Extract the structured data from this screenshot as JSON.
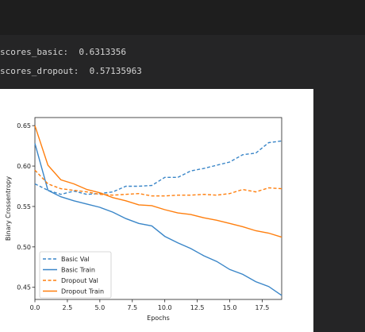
{
  "output": {
    "line1": "scores_basic:  0.6313356",
    "line2": "scores_dropout:  0.57135963"
  },
  "colors": {
    "basic": "#3a86c8",
    "dropout": "#ff7f0e",
    "background": "#252526",
    "plot_bg": "#ffffff"
  },
  "chart_data": {
    "type": "line",
    "title": "",
    "xlabel": "Epochs",
    "ylabel": "Binary Crossentropy",
    "xlim": [
      0,
      19
    ],
    "ylim": [
      0.435,
      0.66
    ],
    "xticks": [
      "0.0",
      "2.5",
      "5.0",
      "7.5",
      "10.0",
      "12.5",
      "15.0",
      "17.5"
    ],
    "xtick_values": [
      0,
      2.5,
      5,
      7.5,
      10,
      12.5,
      15,
      17.5
    ],
    "yticks": [
      "0.45",
      "0.50",
      "0.55",
      "0.60",
      "0.65"
    ],
    "ytick_values": [
      0.45,
      0.5,
      0.55,
      0.6,
      0.65
    ],
    "grid": false,
    "legend_position": "lower-left",
    "x": [
      0,
      1,
      2,
      3,
      4,
      5,
      6,
      7,
      8,
      9,
      10,
      11,
      12,
      13,
      14,
      15,
      16,
      17,
      18,
      19
    ],
    "series": [
      {
        "name": "Basic Val",
        "style": "dashed",
        "color": "#3a86c8",
        "values": [
          0.578,
          0.57,
          0.565,
          0.569,
          0.565,
          0.566,
          0.568,
          0.575,
          0.575,
          0.576,
          0.586,
          0.586,
          0.594,
          0.597,
          0.601,
          0.605,
          0.614,
          0.616,
          0.629,
          0.631
        ]
      },
      {
        "name": "Basic Train",
        "style": "solid",
        "color": "#3a86c8",
        "values": [
          0.628,
          0.57,
          0.562,
          0.557,
          0.553,
          0.549,
          0.543,
          0.535,
          0.529,
          0.526,
          0.513,
          0.505,
          0.498,
          0.489,
          0.482,
          0.472,
          0.466,
          0.457,
          0.451,
          0.44
        ]
      },
      {
        "name": "Dropout Val",
        "style": "dashed",
        "color": "#ff7f0e",
        "values": [
          0.595,
          0.578,
          0.572,
          0.57,
          0.568,
          0.565,
          0.564,
          0.565,
          0.566,
          0.563,
          0.563,
          0.564,
          0.564,
          0.565,
          0.564,
          0.566,
          0.571,
          0.568,
          0.573,
          0.572
        ]
      },
      {
        "name": "Dropout Train",
        "style": "solid",
        "color": "#ff7f0e",
        "values": [
          0.65,
          0.601,
          0.583,
          0.578,
          0.571,
          0.567,
          0.561,
          0.557,
          0.552,
          0.551,
          0.546,
          0.542,
          0.54,
          0.536,
          0.533,
          0.529,
          0.525,
          0.52,
          0.517,
          0.512
        ]
      }
    ]
  }
}
